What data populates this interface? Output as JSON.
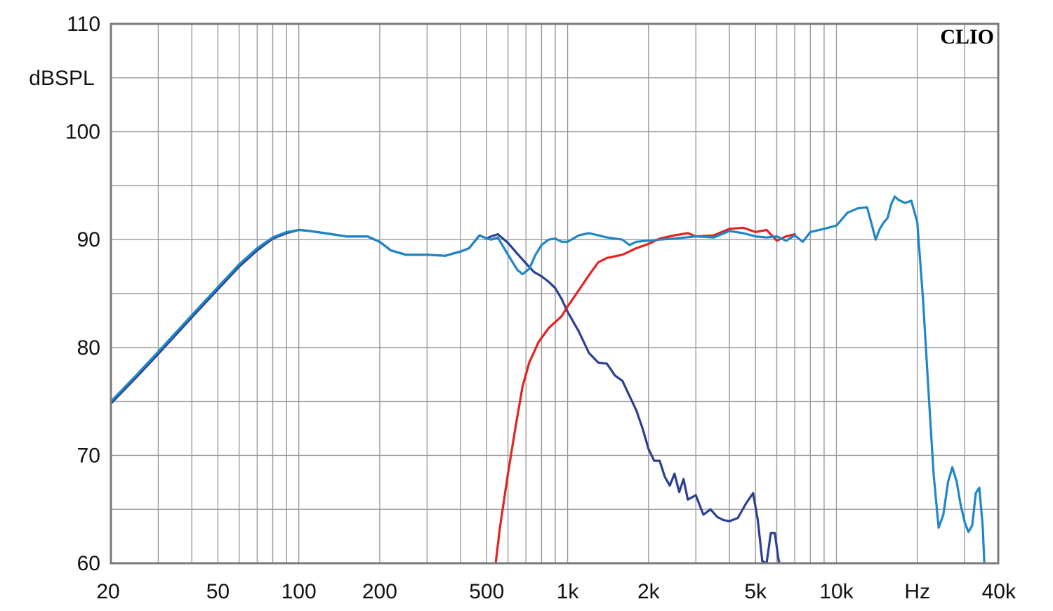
{
  "chart_data": {
    "type": "line",
    "brand": "CLIO",
    "ylabel": "dBSPL",
    "xlabel": "Hz",
    "x_scale": "log",
    "xlim": [
      20,
      40000
    ],
    "ylim": [
      60,
      110
    ],
    "grid": true,
    "y_ticks": [
      {
        "value": 60,
        "label": "60"
      },
      {
        "value": 70,
        "label": "70"
      },
      {
        "value": 80,
        "label": "80"
      },
      {
        "value": 90,
        "label": "90"
      },
      {
        "value": 100,
        "label": "100"
      },
      {
        "value": 110,
        "label": "110"
      }
    ],
    "x_ticks": [
      {
        "value": 20,
        "label": "20"
      },
      {
        "value": 50,
        "label": "50"
      },
      {
        "value": 100,
        "label": "100"
      },
      {
        "value": 200,
        "label": "200"
      },
      {
        "value": 500,
        "label": "500"
      },
      {
        "value": 1000,
        "label": "1k"
      },
      {
        "value": 2000,
        "label": "2k"
      },
      {
        "value": 5000,
        "label": "5k"
      },
      {
        "value": 10000,
        "label": "10k"
      },
      {
        "value": 20000,
        "label": "Hz"
      },
      {
        "value": 40000,
        "label": "40k"
      }
    ],
    "series": [
      {
        "color": "#2b3f93",
        "points": [
          [
            20,
            74.8
          ],
          [
            25,
            77.3
          ],
          [
            30,
            79.4
          ],
          [
            40,
            82.8
          ],
          [
            50,
            85.4
          ],
          [
            60,
            87.5
          ],
          [
            70,
            89.0
          ],
          [
            80,
            90.1
          ],
          [
            90,
            90.6
          ],
          [
            100,
            90.9
          ],
          [
            110,
            90.8
          ],
          [
            125,
            90.6
          ],
          [
            150,
            90.3
          ],
          [
            180,
            90.3
          ],
          [
            200,
            89.8
          ],
          [
            220,
            89.0
          ],
          [
            250,
            88.6
          ],
          [
            300,
            88.6
          ],
          [
            350,
            88.5
          ],
          [
            400,
            88.9
          ],
          [
            430,
            89.2
          ],
          [
            470,
            90.4
          ],
          [
            500,
            90.1
          ],
          [
            520,
            90.3
          ],
          [
            550,
            90.5
          ],
          [
            600,
            89.7
          ],
          [
            650,
            88.7
          ],
          [
            700,
            87.8
          ],
          [
            750,
            87.0
          ],
          [
            800,
            86.6
          ],
          [
            850,
            86.1
          ],
          [
            900,
            85.5
          ],
          [
            950,
            84.5
          ],
          [
            1000,
            83.3
          ],
          [
            1100,
            81.5
          ],
          [
            1200,
            79.5
          ],
          [
            1300,
            78.6
          ],
          [
            1400,
            78.5
          ],
          [
            1500,
            77.4
          ],
          [
            1600,
            76.9
          ],
          [
            1700,
            75.5
          ],
          [
            1800,
            74.2
          ],
          [
            1900,
            72.5
          ],
          [
            2000,
            70.6
          ],
          [
            2100,
            69.5
          ],
          [
            2200,
            69.5
          ],
          [
            2300,
            68.0
          ],
          [
            2400,
            67.2
          ],
          [
            2500,
            68.3
          ],
          [
            2600,
            66.6
          ],
          [
            2700,
            67.8
          ],
          [
            2800,
            65.9
          ],
          [
            3000,
            66.3
          ],
          [
            3200,
            64.5
          ],
          [
            3400,
            65.0
          ],
          [
            3600,
            64.3
          ],
          [
            3800,
            64.0
          ],
          [
            4000,
            63.9
          ],
          [
            4300,
            64.2
          ],
          [
            4600,
            65.5
          ],
          [
            4900,
            66.5
          ],
          [
            5100,
            64.0
          ],
          [
            5300,
            60.2
          ],
          [
            5500,
            60.0
          ],
          [
            5700,
            62.8
          ],
          [
            5900,
            62.8
          ],
          [
            6100,
            60.2
          ],
          [
            6200,
            59.8
          ]
        ]
      },
      {
        "color": "#e52222",
        "points": [
          [
            540,
            60.0
          ],
          [
            560,
            63.3
          ],
          [
            600,
            68.3
          ],
          [
            640,
            72.6
          ],
          [
            680,
            76.4
          ],
          [
            720,
            78.6
          ],
          [
            780,
            80.5
          ],
          [
            850,
            81.8
          ],
          [
            950,
            82.9
          ],
          [
            1000,
            83.8
          ],
          [
            1100,
            85.3
          ],
          [
            1200,
            86.7
          ],
          [
            1300,
            87.9
          ],
          [
            1400,
            88.3
          ],
          [
            1600,
            88.6
          ],
          [
            1800,
            89.2
          ],
          [
            2000,
            89.6
          ],
          [
            2200,
            90.1
          ],
          [
            2500,
            90.4
          ],
          [
            2800,
            90.6
          ],
          [
            3000,
            90.3
          ],
          [
            3500,
            90.4
          ],
          [
            4000,
            91.0
          ],
          [
            4500,
            91.1
          ],
          [
            5000,
            90.7
          ],
          [
            5500,
            90.9
          ],
          [
            6000,
            89.9
          ],
          [
            6500,
            90.3
          ],
          [
            7000,
            90.5
          ]
        ]
      },
      {
        "color": "#1f86c7",
        "points": [
          [
            20,
            75.0
          ],
          [
            25,
            77.5
          ],
          [
            30,
            79.6
          ],
          [
            40,
            83.0
          ],
          [
            50,
            85.6
          ],
          [
            60,
            87.7
          ],
          [
            70,
            89.2
          ],
          [
            80,
            90.2
          ],
          [
            90,
            90.7
          ],
          [
            100,
            90.9
          ],
          [
            110,
            90.8
          ],
          [
            125,
            90.6
          ],
          [
            150,
            90.3
          ],
          [
            180,
            90.3
          ],
          [
            200,
            89.8
          ],
          [
            220,
            89.0
          ],
          [
            250,
            88.6
          ],
          [
            300,
            88.6
          ],
          [
            350,
            88.5
          ],
          [
            400,
            88.9
          ],
          [
            430,
            89.2
          ],
          [
            470,
            90.4
          ],
          [
            500,
            90.1
          ],
          [
            520,
            90.0
          ],
          [
            550,
            90.2
          ],
          [
            600,
            88.6
          ],
          [
            650,
            87.2
          ],
          [
            680,
            86.8
          ],
          [
            720,
            87.3
          ],
          [
            760,
            88.6
          ],
          [
            800,
            89.5
          ],
          [
            850,
            90.0
          ],
          [
            900,
            90.1
          ],
          [
            950,
            89.8
          ],
          [
            1000,
            89.8
          ],
          [
            1100,
            90.4
          ],
          [
            1200,
            90.6
          ],
          [
            1300,
            90.4
          ],
          [
            1400,
            90.2
          ],
          [
            1500,
            90.1
          ],
          [
            1600,
            90.0
          ],
          [
            1700,
            89.5
          ],
          [
            1800,
            89.8
          ],
          [
            2000,
            89.9
          ],
          [
            2200,
            90.0
          ],
          [
            2500,
            90.1
          ],
          [
            3000,
            90.3
          ],
          [
            3500,
            90.2
          ],
          [
            4000,
            90.8
          ],
          [
            4500,
            90.6
          ],
          [
            5000,
            90.3
          ],
          [
            5500,
            90.2
          ],
          [
            6000,
            90.3
          ],
          [
            6500,
            89.9
          ],
          [
            7000,
            90.4
          ],
          [
            7500,
            89.8
          ],
          [
            8000,
            90.7
          ],
          [
            9000,
            91.0
          ],
          [
            10000,
            91.3
          ],
          [
            11000,
            92.5
          ],
          [
            12000,
            92.9
          ],
          [
            13000,
            93.0
          ],
          [
            13500,
            91.5
          ],
          [
            14000,
            90.0
          ],
          [
            14500,
            91.0
          ],
          [
            15000,
            91.6
          ],
          [
            15500,
            92.0
          ],
          [
            16000,
            93.3
          ],
          [
            16500,
            94.0
          ],
          [
            17000,
            93.7
          ],
          [
            18000,
            93.4
          ],
          [
            19000,
            93.6
          ],
          [
            20000,
            91.6
          ],
          [
            21000,
            84.5
          ],
          [
            22000,
            76.0
          ],
          [
            23000,
            68.2
          ],
          [
            24000,
            63.3
          ],
          [
            25000,
            64.5
          ],
          [
            26000,
            67.5
          ],
          [
            27000,
            68.9
          ],
          [
            28000,
            67.6
          ],
          [
            29000,
            65.4
          ],
          [
            30000,
            63.8
          ],
          [
            31000,
            62.9
          ],
          [
            32000,
            63.5
          ],
          [
            33000,
            66.5
          ],
          [
            34000,
            67.0
          ],
          [
            35000,
            63.5
          ],
          [
            35500,
            60.0
          ]
        ]
      }
    ]
  }
}
